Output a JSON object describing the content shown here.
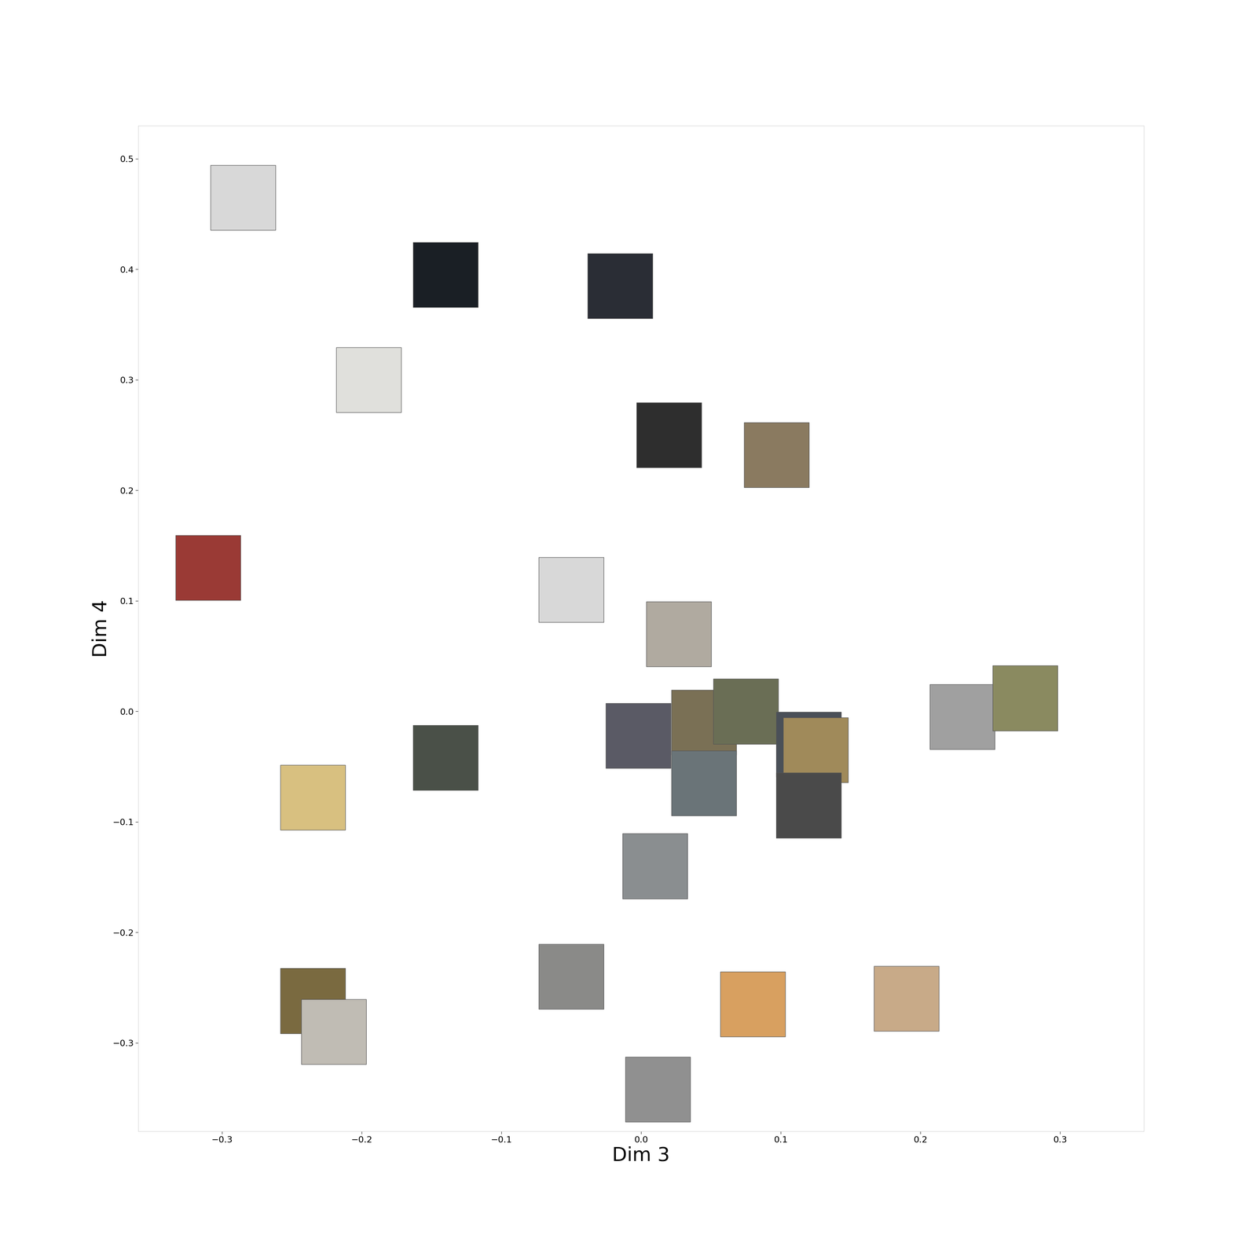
{
  "chart_data": {
    "type": "scatter",
    "x_label": "Dim 3",
    "y_label": "Dim 4",
    "x": [
      -0.285,
      -0.14,
      -0.015,
      -0.195,
      0.02,
      0.097,
      -0.31,
      -0.05,
      0.027,
      -0.002,
      0.045,
      0.075,
      0.12,
      0.125,
      0.045,
      0.12,
      0.01,
      0.23,
      0.275,
      -0.235,
      -0.14,
      -0.235,
      -0.22,
      -0.05,
      0.08,
      0.19,
      0.012
    ],
    "values": [
      0.465,
      0.395,
      0.385,
      0.3,
      0.25,
      0.232,
      0.13,
      0.11,
      0.07,
      -0.022,
      -0.01,
      0.0,
      -0.03,
      -0.035,
      -0.065,
      -0.085,
      -0.14,
      -0.005,
      0.012,
      -0.078,
      -0.042,
      -0.262,
      -0.29,
      -0.24,
      -0.265,
      -0.26,
      -0.342
    ],
    "colors": [
      "#d8d8d8",
      "#1a1f25",
      "#2a2d35",
      "#e0e0dc",
      "#2e2e2e",
      "#8a7a60",
      "#9a3a35",
      "#d8d8d8",
      "#b0aaa0",
      "#5a5a65",
      "#7a7055",
      "#6a6e55",
      "#4a5058",
      "#a08a5a",
      "#6a7478",
      "#4a4a4a",
      "#8a8e90",
      "#a0a0a0",
      "#8a8a60",
      "#d8c080",
      "#4a5048",
      "#7a6a40",
      "#c0bcb4",
      "#8a8a88",
      "#d8a060",
      "#c8aa88",
      "#909090"
    ],
    "marker": "square",
    "xlim": [
      -0.36,
      0.36
    ],
    "ylim": [
      -0.38,
      0.53
    ],
    "xticks": [
      {
        "value": -0.3,
        "label": "−0.3"
      },
      {
        "value": -0.2,
        "label": "−0.2"
      },
      {
        "value": -0.1,
        "label": "−0.1"
      },
      0.0,
      0.1,
      0.2,
      0.3
    ],
    "yticks": [
      {
        "value": -0.3,
        "label": "−0.3"
      },
      {
        "value": -0.2,
        "label": "−0.2"
      },
      {
        "value": -0.1,
        "label": "−0.1"
      },
      0.0,
      0.1,
      0.2,
      0.3,
      0.4,
      0.5
    ],
    "grid": false
  }
}
